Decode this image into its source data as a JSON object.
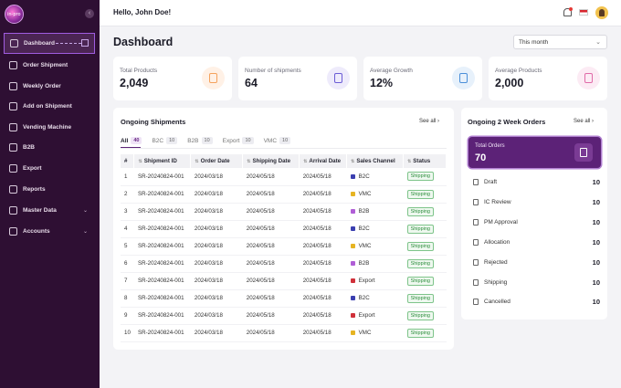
{
  "sidebar": {
    "logo_text": "in-pro",
    "collapse_icon": "chevron-left-icon",
    "items": [
      {
        "label": "Dashboard",
        "icon": "home-icon",
        "active": true
      },
      {
        "label": "Order Shipment",
        "icon": "order-icon"
      },
      {
        "label": "Weekly Order",
        "icon": "calendar-icon"
      },
      {
        "label": "Add on Shipment",
        "icon": "truck-icon"
      },
      {
        "label": "Vending Machine",
        "icon": "vending-icon"
      },
      {
        "label": "B2B",
        "icon": "building-icon"
      },
      {
        "label": "Export",
        "icon": "export-icon"
      },
      {
        "label": "Reports",
        "icon": "report-icon"
      },
      {
        "label": "Master Data",
        "icon": "database-icon",
        "expandable": true
      },
      {
        "label": "Accounts",
        "icon": "user-icon",
        "expandable": true
      }
    ]
  },
  "header": {
    "greeting": "Hello, John Doe!"
  },
  "main": {
    "title": "Dashboard",
    "period_select": "This month",
    "stats": [
      {
        "label": "Total Products",
        "value": "2,049",
        "color": "#f5a25d",
        "bg": "#fff1e6"
      },
      {
        "label": "Number of shipments",
        "value": "64",
        "color": "#6b5cd6",
        "bg": "#eeebfb"
      },
      {
        "label": "Average Growth",
        "value": "12%",
        "color": "#4a8fd9",
        "bg": "#e7f1fb"
      },
      {
        "label": "Average Products",
        "value": "2,000",
        "color": "#e06aa8",
        "bg": "#fcebf4"
      }
    ],
    "shipments": {
      "title": "Ongoing Shipments",
      "see_all": "See all",
      "tabs": [
        {
          "label": "All",
          "count": "40",
          "active": true
        },
        {
          "label": "B2C",
          "count": "10"
        },
        {
          "label": "B2B",
          "count": "10"
        },
        {
          "label": "Export",
          "count": "10"
        },
        {
          "label": "VMC",
          "count": "10"
        }
      ],
      "columns": [
        "#",
        "Shipment ID",
        "Order Date",
        "Shipping Date",
        "Arrival Date",
        "Sales Channel",
        "Status"
      ],
      "rows": [
        {
          "no": "1",
          "id": "SR-20240824-001",
          "order": "2024/03/18",
          "ship": "2024/05/18",
          "arrival": "2024/05/18",
          "channel": "B2C",
          "color": "#3b3fb0",
          "status": "Shipping"
        },
        {
          "no": "2",
          "id": "SR-20240824-001",
          "order": "2024/03/18",
          "ship": "2024/05/18",
          "arrival": "2024/05/18",
          "channel": "VMC",
          "color": "#e6b422",
          "status": "Shipping"
        },
        {
          "no": "3",
          "id": "SR-20240824-001",
          "order": "2024/03/18",
          "ship": "2024/05/18",
          "arrival": "2024/05/18",
          "channel": "B2B",
          "color": "#b05ed6",
          "status": "Shipping"
        },
        {
          "no": "4",
          "id": "SR-20240824-001",
          "order": "2024/03/18",
          "ship": "2024/05/18",
          "arrival": "2024/05/18",
          "channel": "B2C",
          "color": "#3b3fb0",
          "status": "Shipping"
        },
        {
          "no": "5",
          "id": "SR-20240824-001",
          "order": "2024/03/18",
          "ship": "2024/05/18",
          "arrival": "2024/05/18",
          "channel": "VMC",
          "color": "#e6b422",
          "status": "Shipping"
        },
        {
          "no": "6",
          "id": "SR-20240824-001",
          "order": "2024/03/18",
          "ship": "2024/05/18",
          "arrival": "2024/05/18",
          "channel": "B2B",
          "color": "#b05ed6",
          "status": "Shipping"
        },
        {
          "no": "7",
          "id": "SR-20240824-001",
          "order": "2024/03/18",
          "ship": "2024/05/18",
          "arrival": "2024/05/18",
          "channel": "Export",
          "color": "#d0313a",
          "status": "Shipping"
        },
        {
          "no": "8",
          "id": "SR-20240824-001",
          "order": "2024/03/18",
          "ship": "2024/05/18",
          "arrival": "2024/05/18",
          "channel": "B2C",
          "color": "#3b3fb0",
          "status": "Shipping"
        },
        {
          "no": "9",
          "id": "SR-20240824-001",
          "order": "2024/03/18",
          "ship": "2024/05/18",
          "arrival": "2024/05/18",
          "channel": "Export",
          "color": "#d0313a",
          "status": "Shipping"
        },
        {
          "no": "10",
          "id": "SR-20240824-001",
          "order": "2024/03/18",
          "ship": "2024/05/18",
          "arrival": "2024/05/18",
          "channel": "VMC",
          "color": "#e6b422",
          "status": "Shipping"
        }
      ]
    },
    "orders": {
      "title": "Ongoing 2 Week Orders",
      "see_all": "See all",
      "total_label": "Total Orders",
      "total_value": "70",
      "items": [
        {
          "label": "Draft",
          "value": "10"
        },
        {
          "label": "IC Review",
          "value": "10"
        },
        {
          "label": "PM Approval",
          "value": "10"
        },
        {
          "label": "Allocation",
          "value": "10"
        },
        {
          "label": "Rejected",
          "value": "10"
        },
        {
          "label": "Shipping",
          "value": "10"
        },
        {
          "label": "Cancelled",
          "value": "10"
        }
      ]
    }
  }
}
